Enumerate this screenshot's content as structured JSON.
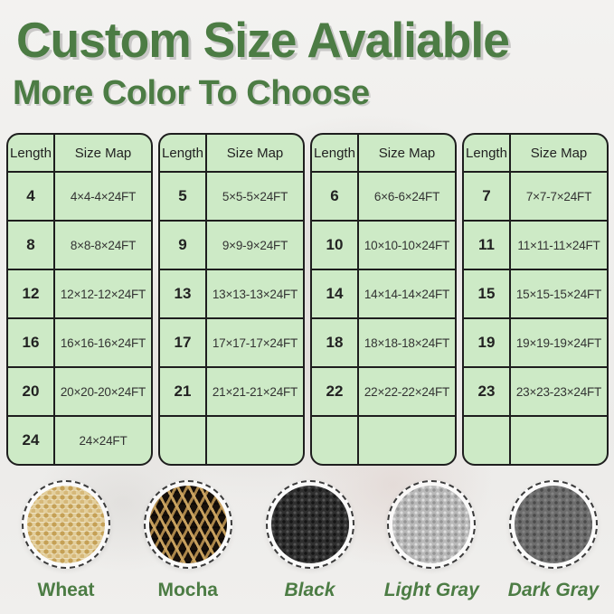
{
  "page": {
    "title": "Custom Size Avaliable",
    "subtitle": "More Color To Choose"
  },
  "colors": {
    "accent_green": "#4c7c44",
    "table_background": "#cdeac6",
    "table_border": "#1e1e1e",
    "cell_text": "#333333"
  },
  "tables": [
    {
      "columns": [
        "Length",
        "Size Map"
      ],
      "rows": [
        [
          "4",
          "4×4-4×24FT"
        ],
        [
          "8",
          "8×8-8×24FT"
        ],
        [
          "12",
          "12×12-12×24FT"
        ],
        [
          "16",
          "16×16-16×24FT"
        ],
        [
          "20",
          "20×20-20×24FT"
        ],
        [
          "24",
          "24×24FT"
        ]
      ]
    },
    {
      "columns": [
        "Length",
        "Size Map"
      ],
      "rows": [
        [
          "5",
          "5×5-5×24FT"
        ],
        [
          "9",
          "9×9-9×24FT"
        ],
        [
          "13",
          "13×13-13×24FT"
        ],
        [
          "17",
          "17×17-17×24FT"
        ],
        [
          "21",
          "21×21-21×24FT"
        ],
        [
          "",
          ""
        ]
      ]
    },
    {
      "columns": [
        "Length",
        "Size Map"
      ],
      "rows": [
        [
          "6",
          "6×6-6×24FT"
        ],
        [
          "10",
          "10×10-10×24FT"
        ],
        [
          "14",
          "14×14-14×24FT"
        ],
        [
          "18",
          "18×18-18×24FT"
        ],
        [
          "22",
          "22×22-22×24FT"
        ],
        [
          "",
          ""
        ]
      ]
    },
    {
      "columns": [
        "Length",
        "Size Map"
      ],
      "rows": [
        [
          "7",
          "7×7-7×24FT"
        ],
        [
          "11",
          "11×11-11×24FT"
        ],
        [
          "15",
          "15×15-15×24FT"
        ],
        [
          "19",
          "19×19-19×24FT"
        ],
        [
          "23",
          "23×23-23×24FT"
        ],
        [
          "",
          ""
        ]
      ]
    }
  ],
  "swatches": [
    {
      "label": "Wheat",
      "texture": "wheat",
      "base_color": "#e3cf9d",
      "italic": false
    },
    {
      "label": "Mocha",
      "texture": "mocha",
      "base_color": "#8a6f3e",
      "italic": false
    },
    {
      "label": "Black",
      "texture": "black",
      "base_color": "#2f2f2f",
      "italic": true
    },
    {
      "label": "Light Gray",
      "texture": "light-gray",
      "base_color": "#b9b9b9",
      "italic": true
    },
    {
      "label": "Dark Gray",
      "texture": "dark-gray",
      "base_color": "#6d6d6d",
      "italic": true
    }
  ]
}
